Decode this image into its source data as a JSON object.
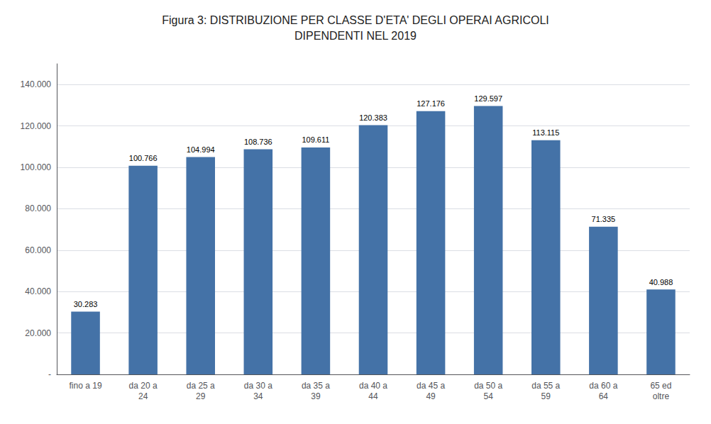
{
  "chart_data": {
    "type": "bar",
    "title": "Figura 3: DISTRIBUZIONE PER CLASSE D'ETA' DEGLI OPERAI AGRICOLI\nDIPENDENTI NEL 2019",
    "categories": [
      "fino a 19",
      "da 20 a\n24",
      "da 25 a\n29",
      "da 30 a\n34",
      "da 35 a\n39",
      "da 40 a\n44",
      "da 45 a\n49",
      "da 50 a\n54",
      "da 55 a\n59",
      "da 60 a\n64",
      "65 ed\noltre"
    ],
    "values": [
      30283,
      100766,
      104994,
      108736,
      109611,
      120383,
      127176,
      129597,
      113115,
      71335,
      40988
    ],
    "value_labels": [
      "30.283",
      "100.766",
      "104.994",
      "108.736",
      "109.611",
      "120.383",
      "127.176",
      "129.597",
      "113.115",
      "71.335",
      "40.988"
    ],
    "data_labels": true,
    "color": "#4472a7",
    "ylim": [
      0,
      150000
    ],
    "yticks": [
      {
        "value": 0,
        "label": "-"
      },
      {
        "value": 20000,
        "label": "20.000"
      },
      {
        "value": 40000,
        "label": "40.000"
      },
      {
        "value": 60000,
        "label": "60.000"
      },
      {
        "value": 80000,
        "label": "80.000"
      },
      {
        "value": 100000,
        "label": "100.000"
      },
      {
        "value": 120000,
        "label": "120.000"
      },
      {
        "value": 140000,
        "label": "140.000"
      }
    ],
    "grid": true
  }
}
